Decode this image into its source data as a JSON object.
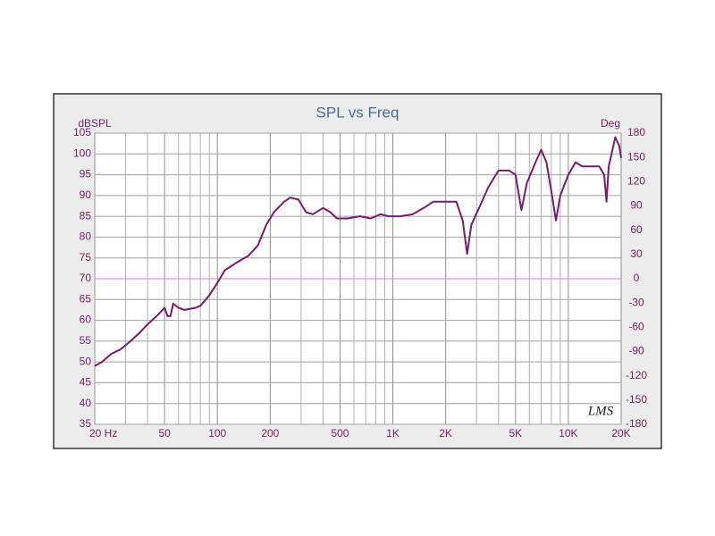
{
  "chart_data": {
    "type": "line",
    "title": "SPL vs Freq",
    "ylabel": "dBSPL",
    "y2label": "Deg",
    "watermark": "LMS",
    "xscale": "log",
    "xlim": [
      20,
      20000
    ],
    "xticks": [
      {
        "value": 20,
        "label": "20  Hz"
      },
      50,
      100,
      200,
      500,
      {
        "value": 1000,
        "label": "1K"
      },
      {
        "value": 2000,
        "label": "2K"
      },
      {
        "value": 5000,
        "label": "5K"
      },
      {
        "value": 10000,
        "label": "10K"
      },
      {
        "value": 20000,
        "label": "20K"
      }
    ],
    "xgrid": [
      30,
      40,
      60,
      70,
      80,
      90,
      300,
      400,
      600,
      700,
      800,
      900,
      3000,
      4000,
      6000,
      7000,
      8000,
      9000
    ],
    "ylim": [
      35,
      105
    ],
    "yticks": [
      35,
      40,
      45,
      50,
      55,
      60,
      65,
      70,
      75,
      80,
      85,
      90,
      95,
      100,
      105
    ],
    "y2lim": [
      -180,
      180
    ],
    "y2ticks": [
      -180,
      -150,
      -120,
      -90,
      -60,
      -30,
      0,
      30,
      60,
      90,
      120,
      150,
      180
    ],
    "y2_zero_line": true,
    "grid": true,
    "x": [
      20,
      22,
      25,
      28,
      32,
      36,
      40,
      45,
      50,
      52,
      54,
      56,
      60,
      65,
      75,
      80,
      90,
      100,
      110,
      130,
      150,
      170,
      190,
      210,
      240,
      260,
      290,
      320,
      350,
      400,
      440,
      480,
      550,
      650,
      750,
      850,
      950,
      1100,
      1300,
      1500,
      1700,
      2000,
      2300,
      2500,
      2650,
      2800,
      3100,
      3500,
      4000,
      4600,
      5000,
      5400,
      5800,
      6500,
      7000,
      7500,
      8000,
      8500,
      9000,
      10000,
      11000,
      12000,
      13500,
      15000,
      16000,
      16500,
      17000,
      18500,
      19500,
      20000
    ],
    "series": [
      {
        "color": "#7a1a6e",
        "values": [
          49,
          50,
          52,
          53,
          55,
          57,
          59,
          61,
          63,
          61,
          61,
          64,
          63,
          62.5,
          63,
          63.5,
          66,
          69,
          72,
          74,
          75.5,
          78,
          83,
          86,
          88.5,
          89.5,
          89,
          86,
          85.5,
          87,
          86,
          84.5,
          84.5,
          85,
          84.5,
          85.5,
          85,
          85,
          85.5,
          87,
          88.5,
          88.5,
          88.5,
          84,
          76,
          83,
          87,
          92,
          96,
          96,
          95,
          86.5,
          93,
          98,
          101,
          98,
          91,
          84,
          90,
          95,
          98,
          97,
          97,
          97,
          95,
          88.5,
          97,
          104,
          102,
          99
        ]
      }
    ]
  }
}
